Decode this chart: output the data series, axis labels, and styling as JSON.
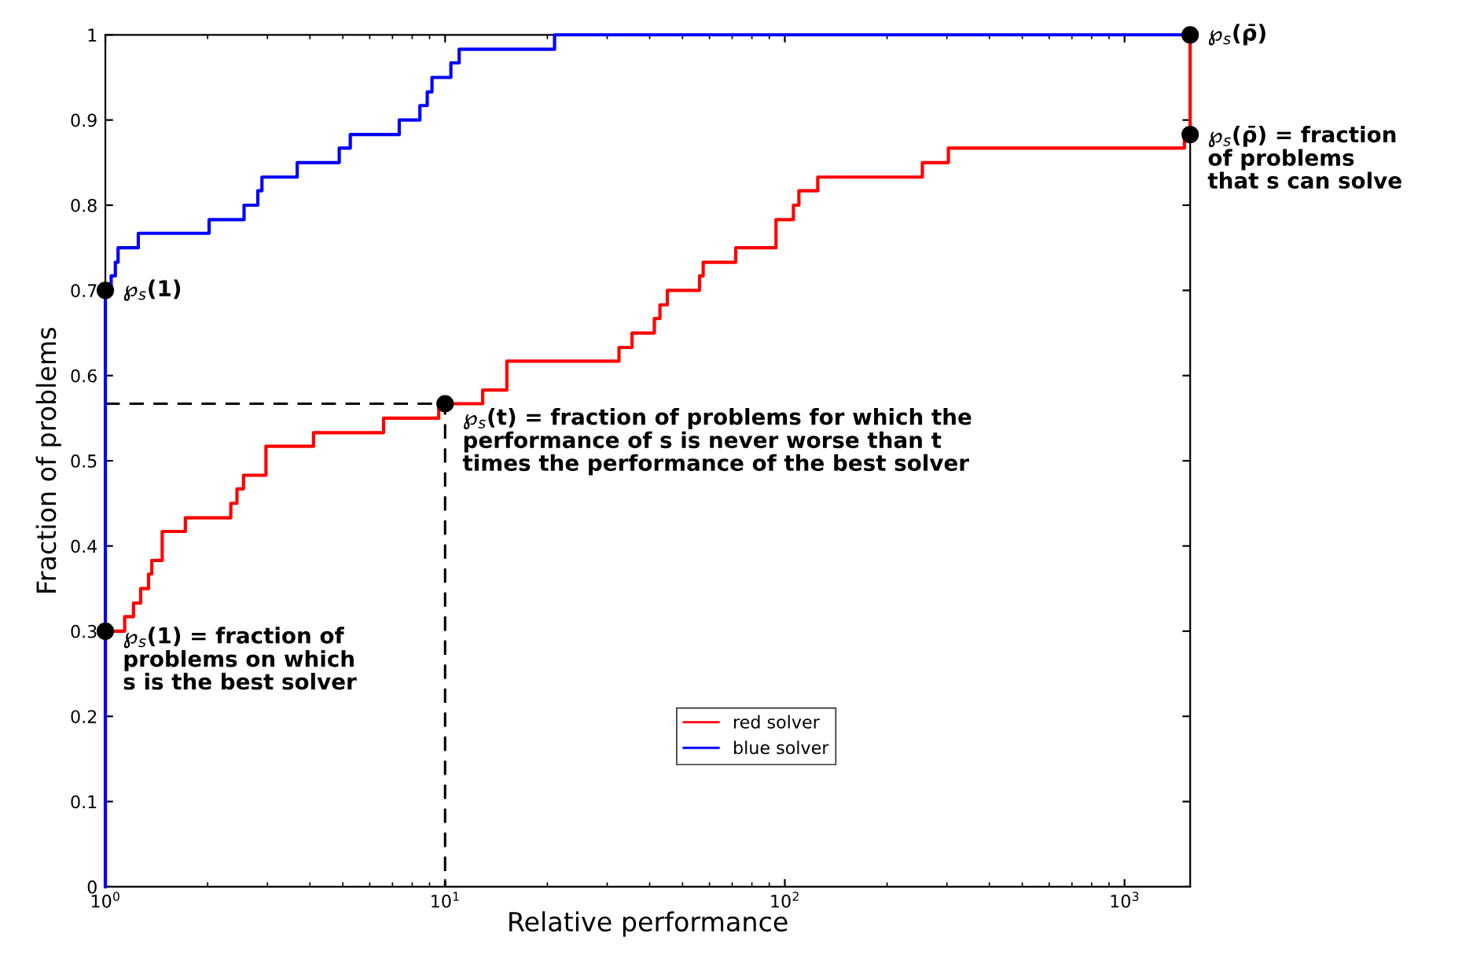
{
  "chart_data": {
    "type": "step",
    "xlabel": "Relative performance",
    "ylabel": "Fraction of problems",
    "log": "x",
    "xlim": [
      1,
      1560
    ],
    "ylim": [
      0,
      1
    ],
    "xticks": [
      {
        "value": 1,
        "label": "10$^{0}$"
      },
      {
        "value": 10,
        "label": "10$^{1}$"
      },
      {
        "value": 100,
        "label": "10$^{2}$"
      },
      {
        "value": 1000,
        "label": "10$^{3}$"
      }
    ],
    "yticks": [
      0,
      0.1,
      0.2,
      0.3,
      0.4,
      0.5,
      0.6,
      0.7,
      0.8,
      0.9,
      1
    ],
    "grid": false,
    "legend": "bottom",
    "line_style": "solid",
    "marker": "none",
    "series": [
      {
        "name": "red solver",
        "color": "#ff0000",
        "x": [
          1,
          1,
          1.14,
          1.21,
          1.27,
          1.34,
          1.37,
          1.47,
          1.72,
          2.34,
          2.44,
          2.55,
          2.97,
          4.1,
          6.59,
          9.58,
          12.9,
          15.2,
          32.5,
          35.5,
          41.3,
          42.9,
          45.1,
          56.1,
          57.5,
          71.7,
          94.2,
          106,
          110,
          125,
          254,
          303,
          1500,
          1560
        ],
        "values": [
          0,
          0.3,
          0.317,
          0.333,
          0.35,
          0.367,
          0.383,
          0.417,
          0.433,
          0.45,
          0.467,
          0.483,
          0.517,
          0.533,
          0.55,
          0.567,
          0.583,
          0.617,
          0.633,
          0.65,
          0.667,
          0.683,
          0.7,
          0.717,
          0.733,
          0.75,
          0.783,
          0.8,
          0.817,
          0.833,
          0.85,
          0.867,
          0.883,
          1.0
        ]
      },
      {
        "name": "blue solver",
        "color": "#0000ff",
        "x": [
          1,
          1,
          1.04,
          1.07,
          1.09,
          1.25,
          2.02,
          2.56,
          2.81,
          2.89,
          3.67,
          4.88,
          5.26,
          7.33,
          8.43,
          8.86,
          9.15,
          10.4,
          11.0,
          21.0,
          1560
        ],
        "values": [
          0,
          0.7,
          0.717,
          0.733,
          0.75,
          0.767,
          0.783,
          0.8,
          0.817,
          0.833,
          0.85,
          0.867,
          0.883,
          0.9,
          0.917,
          0.933,
          0.95,
          0.967,
          0.983,
          1.0,
          1.0
        ]
      },
      {
        "type": "line",
        "color": "#000000",
        "line_style": "dashed",
        "x": [
          1,
          10,
          10
        ],
        "values": [
          0.567,
          0.567,
          0
        ]
      }
    ],
    "annotations": [
      {
        "text": "℘$_{s}$(1)",
        "x": 1,
        "y": 0.7
      },
      {
        "text": "℘$_{s}$(1) = fraction of\nproblems on which\ns is the best solver",
        "x": 1,
        "y": 0.3
      },
      {
        "text": "℘$_{s}$(t) = fraction of problems for which the\nperformance of s is never worse than t\ntimes the performance of the best solver",
        "x": 10,
        "y": 0.567
      },
      {
        "text": "℘$_{s}$(ρ̄)",
        "x": 1560,
        "y": 1
      },
      {
        "text": "℘$_{s}$(ρ̄) = fraction\nof problems\nthat s can solve",
        "x": 1560,
        "y": 0.883
      }
    ]
  }
}
